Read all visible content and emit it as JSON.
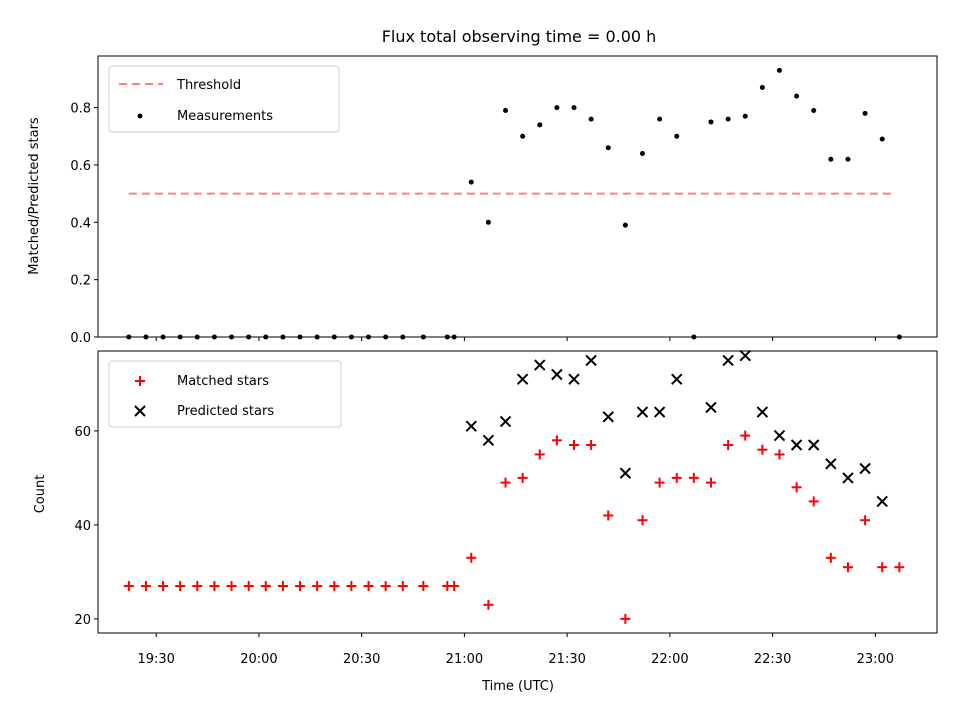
{
  "title": "Flux total observing time = 0.00 h",
  "chart_data": [
    {
      "type": "scatter",
      "ylabel": "Matched/Predicted stars",
      "ylim": [
        0,
        0.98
      ],
      "yticks": [
        0.0,
        0.2,
        0.4,
        0.6,
        0.8
      ],
      "ytick_labels": [
        "0.0",
        "0.2",
        "0.4",
        "0.6",
        "0.8"
      ],
      "legend_placement": "upper left",
      "threshold": {
        "name": "Threshold",
        "value": 0.5,
        "x_start": "19:22",
        "x_end": "23:06",
        "color": "#ff7f7f"
      },
      "series": [
        {
          "name": "Measurements",
          "marker": "dot",
          "color": "#000000",
          "x": [
            "19:22",
            "19:27",
            "19:32",
            "19:37",
            "19:42",
            "19:47",
            "19:52",
            "19:57",
            "20:02",
            "20:07",
            "20:12",
            "20:17",
            "20:22",
            "20:27",
            "20:32",
            "20:37",
            "20:42",
            "20:48",
            "20:55",
            "20:57",
            "21:02",
            "21:07",
            "21:12",
            "21:17",
            "21:22",
            "21:27",
            "21:32",
            "21:37",
            "21:42",
            "21:47",
            "21:52",
            "21:57",
            "22:02",
            "22:07",
            "22:12",
            "22:17",
            "22:22",
            "22:27",
            "22:32",
            "22:37",
            "22:42",
            "22:47",
            "22:52",
            "22:57",
            "23:02",
            "23:07"
          ],
          "y": [
            0,
            0,
            0,
            0,
            0,
            0,
            0,
            0,
            0,
            0,
            0,
            0,
            0,
            0,
            0,
            0,
            0,
            0,
            0,
            0,
            0.54,
            0.4,
            0.79,
            0.7,
            0.74,
            0.8,
            0.8,
            0.76,
            0.66,
            0.39,
            0.64,
            0.76,
            0.7,
            0,
            0.75,
            0.76,
            0.77,
            0.87,
            0.93,
            0.84,
            0.79,
            0.62,
            0.62,
            0.78,
            0.69,
            0
          ]
        }
      ]
    },
    {
      "type": "scatter",
      "xlabel": "Time (UTC)",
      "ylabel": "Count",
      "ylim": [
        17,
        77
      ],
      "yticks": [
        20,
        40,
        60
      ],
      "ytick_labels": [
        "20",
        "40",
        "60"
      ],
      "xlim": [
        "19:13",
        "23:18"
      ],
      "xticks": [
        "19:30",
        "20:00",
        "20:30",
        "21:00",
        "21:30",
        "22:00",
        "22:30",
        "23:00"
      ],
      "xtick_labels": [
        "19:30",
        "20:00",
        "20:30",
        "21:00",
        "21:30",
        "22:00",
        "22:30",
        "23:00"
      ],
      "legend_placement": "upper left",
      "series": [
        {
          "name": "Matched stars",
          "marker": "plus",
          "color": "#ff0000",
          "x": [
            "19:22",
            "19:27",
            "19:32",
            "19:37",
            "19:42",
            "19:47",
            "19:52",
            "19:57",
            "20:02",
            "20:07",
            "20:12",
            "20:17",
            "20:22",
            "20:27",
            "20:32",
            "20:37",
            "20:42",
            "20:48",
            "20:55",
            "20:57",
            "21:02",
            "21:07",
            "21:12",
            "21:17",
            "21:22",
            "21:27",
            "21:32",
            "21:37",
            "21:42",
            "21:47",
            "21:52",
            "21:57",
            "22:02",
            "22:07",
            "22:12",
            "22:17",
            "22:22",
            "22:27",
            "22:32",
            "22:37",
            "22:42",
            "22:47",
            "22:52",
            "22:57",
            "23:02",
            "23:07"
          ],
          "y": [
            27,
            27,
            27,
            27,
            27,
            27,
            27,
            27,
            27,
            27,
            27,
            27,
            27,
            27,
            27,
            27,
            27,
            27,
            27,
            27,
            33,
            23,
            49,
            50,
            55,
            58,
            57,
            57,
            42,
            20,
            41,
            49,
            50,
            50,
            49,
            57,
            59,
            56,
            55,
            48,
            45,
            33,
            31,
            41,
            31,
            31
          ]
        },
        {
          "name": "Predicted stars",
          "marker": "x",
          "color": "#000000",
          "x": [
            "21:02",
            "21:07",
            "21:12",
            "21:17",
            "21:22",
            "21:27",
            "21:32",
            "21:37",
            "21:42",
            "21:47",
            "21:52",
            "21:57",
            "22:02",
            "22:12",
            "22:17",
            "22:22",
            "22:27",
            "22:32",
            "22:37",
            "22:42",
            "22:47",
            "22:52",
            "22:57",
            "23:02"
          ],
          "y": [
            61,
            58,
            62,
            71,
            74,
            72,
            71,
            75,
            63,
            51,
            64,
            64,
            71,
            65,
            75,
            76,
            64,
            59,
            57,
            57,
            53,
            50,
            52,
            45
          ]
        }
      ]
    }
  ]
}
